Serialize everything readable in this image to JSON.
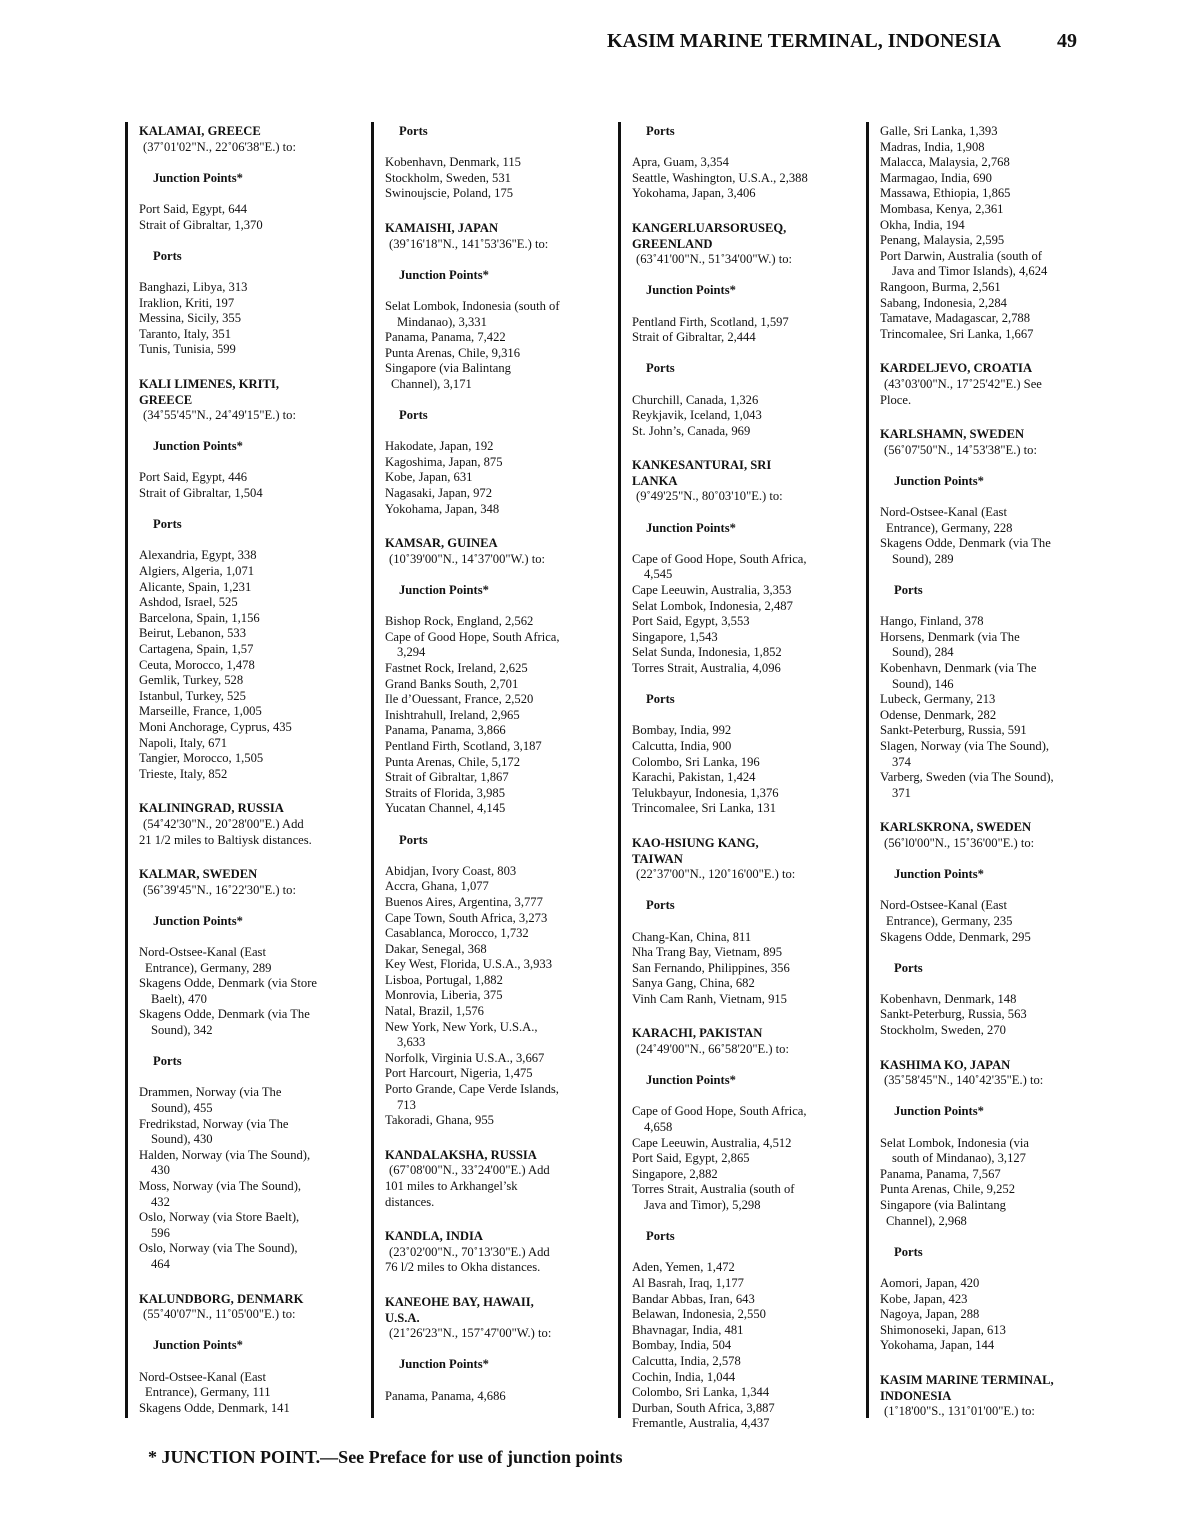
{
  "header": {
    "title": "KASIM MARINE TERMINAL, INDONESIA",
    "page_number": "49"
  },
  "footer": {
    "note": "* JUNCTION POINT.—See Preface for use of junction points"
  },
  "columns": [
    [
      [
        "H",
        "KALAMAI,  GREECE"
      ],
      [
        "C",
        "(37˚01'02\"N., 22˚06'38\"E.) to:"
      ],
      [
        "S",
        "Junction Points*"
      ],
      [
        "E",
        "Port Said, Egypt, 644"
      ],
      [
        "E",
        "Strait of Gibraltar, 1,370"
      ],
      [
        "S",
        "Ports"
      ],
      [
        "E",
        "Banghazi, Libya, 313"
      ],
      [
        "E",
        "Iraklion, Kriti, 197"
      ],
      [
        "E",
        "Messina, Sicily, 355"
      ],
      [
        "E",
        "Taranto, Italy, 351"
      ],
      [
        "E",
        "Tunis, Tunisia, 599"
      ],
      [
        "H",
        "KALI LIMENES,  KRITI,"
      ],
      [
        "H2",
        "GREECE"
      ],
      [
        "C",
        "(34˚55'45\"N., 24˚49'15\"E.) to:"
      ],
      [
        "S",
        "Junction Points*"
      ],
      [
        "E",
        "Port Said, Egypt, 446"
      ],
      [
        "E",
        "Strait of Gibraltar, 1,504"
      ],
      [
        "S",
        "Ports"
      ],
      [
        "E",
        "Alexandria, Egypt, 338"
      ],
      [
        "E",
        "Algiers, Algeria, 1,071"
      ],
      [
        "E",
        "Alicante, Spain, 1,231"
      ],
      [
        "E",
        "Ashdod, Israel, 525"
      ],
      [
        "E",
        "Barcelona, Spain, 1,156"
      ],
      [
        "E",
        "Beirut, Lebanon, 533"
      ],
      [
        "E",
        "Cartagena, Spain, 1,57"
      ],
      [
        "E",
        "Ceuta, Morocco, 1,478"
      ],
      [
        "E",
        "Gemlik, Turkey, 528"
      ],
      [
        "E",
        "Istanbul, Turkey, 525"
      ],
      [
        "E",
        "Marseille, France, 1,005"
      ],
      [
        "E",
        "Moni Anchorage, Cyprus, 435"
      ],
      [
        "E",
        "Napoli, Italy, 671"
      ],
      [
        "E",
        "Tangier, Morocco, 1,505"
      ],
      [
        "E",
        "Trieste, Italy, 852"
      ],
      [
        "H",
        "KALININGRAD,  RUSSIA"
      ],
      [
        "C",
        "(54˚42'30\"N., 20˚28'00\"E.)  Add"
      ],
      [
        "E",
        "21 1/2 miles to Baltiysk distances."
      ],
      [
        "H",
        "KALMAR,  SWEDEN"
      ],
      [
        "C",
        "(56˚39'45\"N., 16˚22'30\"E.) to:"
      ],
      [
        "S",
        "Junction Points*"
      ],
      [
        "E",
        "Nord-Ostsee-Kanal (East"
      ],
      [
        "J",
        "Entrance), Germany, 289"
      ],
      [
        "E",
        "Skagens Odde, Denmark (via Store"
      ],
      [
        "I",
        "Baelt), 470"
      ],
      [
        "E",
        "Skagens Odde, Denmark (via The"
      ],
      [
        "I",
        "Sound), 342"
      ],
      [
        "S",
        "Ports"
      ],
      [
        "E",
        "Drammen, Norway (via The"
      ],
      [
        "I",
        "Sound), 455"
      ],
      [
        "E",
        "Fredrikstad, Norway (via The"
      ],
      [
        "I",
        "Sound), 430"
      ],
      [
        "E",
        "Halden, Norway (via The Sound),"
      ],
      [
        "I",
        "430"
      ],
      [
        "E",
        "Moss, Norway (via The Sound),"
      ],
      [
        "I",
        "432"
      ],
      [
        "E",
        "Oslo, Norway (via Store Baelt),"
      ],
      [
        "I",
        "596"
      ],
      [
        "E",
        "Oslo, Norway (via The Sound),"
      ],
      [
        "I",
        "464"
      ],
      [
        "H",
        "KALUNDBORG,  DENMARK"
      ],
      [
        "C",
        "(55˚40'07\"N., 11˚05'00\"E.) to:"
      ],
      [
        "S",
        "Junction Points*"
      ],
      [
        "E",
        "Nord-Ostsee-Kanal (East"
      ],
      [
        "J",
        "Entrance), Germany, 111"
      ],
      [
        "E",
        "Skagens Odde, Denmark, 141"
      ]
    ],
    [
      [
        "S",
        "Ports"
      ],
      [
        "E",
        "Kobenhavn, Denmark, 115"
      ],
      [
        "E",
        "Stockholm, Sweden, 531"
      ],
      [
        "E",
        "Swinoujscie, Poland, 175"
      ],
      [
        "H",
        "KAMAISHI,  JAPAN"
      ],
      [
        "C",
        "(39˚16'18\"N., 141˚53'36\"E.) to:"
      ],
      [
        "S",
        "Junction Points*"
      ],
      [
        "E",
        "Selat Lombok, Indonesia (south of"
      ],
      [
        "I",
        "Mindanao), 3,331"
      ],
      [
        "E",
        "Panama, Panama, 7,422"
      ],
      [
        "E",
        "Punta Arenas, Chile, 9,316"
      ],
      [
        "E",
        "Singapore (via Balintang"
      ],
      [
        "J",
        "Channel), 3,171"
      ],
      [
        "S",
        "Ports"
      ],
      [
        "E",
        "Hakodate, Japan, 192"
      ],
      [
        "E",
        "Kagoshima, Japan, 875"
      ],
      [
        "E",
        "Kobe, Japan, 631"
      ],
      [
        "E",
        "Nagasaki, Japan, 972"
      ],
      [
        "E",
        "Yokohama, Japan, 348"
      ],
      [
        "H",
        "KAMSAR, GUINEA"
      ],
      [
        "C",
        "(10˚39'00\"N., 14˚37'00\"W.) to:"
      ],
      [
        "S",
        "Junction Points*"
      ],
      [
        "E",
        "Bishop Rock, England, 2,562"
      ],
      [
        "E",
        "Cape of Good Hope, South Africa,"
      ],
      [
        "I",
        "3,294"
      ],
      [
        "E",
        "Fastnet Rock, Ireland, 2,625"
      ],
      [
        "E",
        "Grand Banks South, 2,701"
      ],
      [
        "E",
        "Ile d’Ouessant, France, 2,520"
      ],
      [
        "E",
        "Inishtrahull, Ireland, 2,965"
      ],
      [
        "E",
        "Panama, Panama, 3,866"
      ],
      [
        "E",
        "Pentland Firth, Scotland, 3,187"
      ],
      [
        "E",
        "Punta Arenas, Chile, 5,172"
      ],
      [
        "E",
        "Strait of Gibraltar, 1,867"
      ],
      [
        "E",
        "Straits of Florida, 3,985"
      ],
      [
        "E",
        "Yucatan Channel, 4,145"
      ],
      [
        "S",
        "Ports"
      ],
      [
        "E",
        "Abidjan, Ivory Coast, 803"
      ],
      [
        "E",
        "Accra, Ghana, 1,077"
      ],
      [
        "E",
        "Buenos Aires, Argentina, 3,777"
      ],
      [
        "E",
        "Cape Town, South Africa, 3,273"
      ],
      [
        "E",
        "Casablanca, Morocco, 1,732"
      ],
      [
        "E",
        "Dakar, Senegal, 368"
      ],
      [
        "E",
        "Key West, Florida, U.S.A., 3,933"
      ],
      [
        "E",
        "Lisboa, Portugal, 1,882"
      ],
      [
        "E",
        "Monrovia, Liberia, 375"
      ],
      [
        "E",
        "Natal, Brazil, 1,576"
      ],
      [
        "E",
        "New York, New York, U.S.A.,"
      ],
      [
        "I",
        "3,633"
      ],
      [
        "E",
        "Norfolk, Virginia U.S.A., 3,667"
      ],
      [
        "E",
        "Port Harcourt, Nigeria, 1,475"
      ],
      [
        "E",
        "Porto Grande, Cape Verde Islands,"
      ],
      [
        "I",
        "713"
      ],
      [
        "E",
        "Takoradi, Ghana, 955"
      ],
      [
        "H",
        "KANDALAKSHA,  RUSSIA"
      ],
      [
        "C",
        "(67˚08'00\"N., 33˚24'00\"E.)  Add"
      ],
      [
        "E",
        "101 miles to Arkhangel’sk"
      ],
      [
        "E",
        "distances."
      ],
      [
        "H",
        "KANDLA,  INDIA"
      ],
      [
        "C",
        "(23˚02'00\"N., 70˚13'30\"E.)  Add"
      ],
      [
        "E",
        "76 l/2 miles to Okha distances."
      ],
      [
        "H",
        "KANEOHE BAY,  HAWAII,"
      ],
      [
        "H2",
        "U.S.A."
      ],
      [
        "C",
        "(21˚26'23\"N., 157˚47'00\"W.) to:"
      ],
      [
        "S",
        "Junction Points*"
      ],
      [
        "E",
        "Panama, Panama, 4,686"
      ]
    ],
    [
      [
        "S",
        "Ports"
      ],
      [
        "E",
        "Apra, Guam, 3,354"
      ],
      [
        "E",
        "Seattle, Washington, U.S.A., 2,388"
      ],
      [
        "E",
        "Yokohama, Japan, 3,406"
      ],
      [
        "H",
        "KANGERLUARSORUSEQ,"
      ],
      [
        "H2",
        "GREENLAND"
      ],
      [
        "C",
        "(63˚41'00\"N., 51˚34'00\"W.) to:"
      ],
      [
        "S",
        "Junction Points*"
      ],
      [
        "E",
        "Pentland Firth, Scotland, 1,597"
      ],
      [
        "E",
        "Strait of Gibraltar, 2,444"
      ],
      [
        "S",
        "Ports"
      ],
      [
        "E",
        "Churchill, Canada, 1,326"
      ],
      [
        "E",
        "Reykjavik, Iceland, 1,043"
      ],
      [
        "E",
        "St. John’s, Canada, 969"
      ],
      [
        "H",
        "KANKESANTURAI,  SRI"
      ],
      [
        "H2",
        "LANKA"
      ],
      [
        "C",
        "(9˚49'25\"N., 80˚03'10\"E.) to:"
      ],
      [
        "S",
        "Junction Points*"
      ],
      [
        "E",
        "Cape of Good Hope, South Africa,"
      ],
      [
        "I",
        "4,545"
      ],
      [
        "E",
        "Cape Leeuwin, Australia, 3,353"
      ],
      [
        "E",
        "Selat Lombok, Indonesia, 2,487"
      ],
      [
        "E",
        "Port Said, Egypt, 3,553"
      ],
      [
        "E",
        "Singapore, 1,543"
      ],
      [
        "E",
        "Selat Sunda, Indonesia, 1,852"
      ],
      [
        "E",
        "Torres Strait, Australia, 4,096"
      ],
      [
        "S",
        "Ports"
      ],
      [
        "E",
        "Bombay, India, 992"
      ],
      [
        "E",
        "Calcutta, India, 900"
      ],
      [
        "E",
        "Colombo, Sri Lanka, 196"
      ],
      [
        "E",
        "Karachi, Pakistan, 1,424"
      ],
      [
        "E",
        "Telukbayur, Indonesia, 1,376"
      ],
      [
        "E",
        "Trincomalee, Sri Lanka, 131"
      ],
      [
        "H",
        "KAO-HSIUNG KANG,"
      ],
      [
        "H2",
        "TAIWAN"
      ],
      [
        "C",
        "(22˚37'00\"N., 120˚16'00\"E.) to:"
      ],
      [
        "S",
        "Ports"
      ],
      [
        "E",
        "Chang-Kan, China, 811"
      ],
      [
        "E",
        "Nha Trang Bay, Vietnam, 895"
      ],
      [
        "E",
        "San Fernando, Philippines, 356"
      ],
      [
        "E",
        "Sanya Gang, China, 682"
      ],
      [
        "E",
        "Vinh Cam Ranh, Vietnam, 915"
      ],
      [
        "H",
        "KARACHI,  PAKISTAN"
      ],
      [
        "C",
        "(24˚49'00\"N., 66˚58'20\"E.) to:"
      ],
      [
        "S",
        "Junction Points*"
      ],
      [
        "E",
        "Cape of Good Hope, South Africa,"
      ],
      [
        "I",
        "4,658"
      ],
      [
        "E",
        "Cape Leeuwin, Australia, 4,512"
      ],
      [
        "E",
        "Port Said, Egypt, 2,865"
      ],
      [
        "E",
        "Singapore, 2,882"
      ],
      [
        "E",
        "Torres Strait, Australia (south of"
      ],
      [
        "I",
        "Java and Timor), 5,298"
      ],
      [
        "S",
        "Ports"
      ],
      [
        "E",
        "Aden, Yemen, 1,472"
      ],
      [
        "E",
        "Al Basrah, Iraq, 1,177"
      ],
      [
        "E",
        "Bandar Abbas, Iran, 643"
      ],
      [
        "E",
        "Belawan, Indonesia, 2,550"
      ],
      [
        "E",
        "Bhavnagar, India, 481"
      ],
      [
        "E",
        "Bombay, India, 504"
      ],
      [
        "E",
        "Calcutta, India, 2,578"
      ],
      [
        "E",
        "Cochin, India, 1,044"
      ],
      [
        "E",
        "Colombo, Sri Lanka, 1,344"
      ],
      [
        "E",
        "Durban, South Africa, 3,887"
      ],
      [
        "E",
        "Fremantle, Australia, 4,437"
      ]
    ],
    [
      [
        "E",
        "Galle, Sri Lanka, 1,393"
      ],
      [
        "E",
        "Madras, India, 1,908"
      ],
      [
        "E",
        "Malacca, Malaysia, 2,768"
      ],
      [
        "E",
        "Marmagao, India, 690"
      ],
      [
        "E",
        "Massawa, Ethiopia, 1,865"
      ],
      [
        "E",
        "Mombasa, Kenya, 2,361"
      ],
      [
        "E",
        "Okha, India, 194"
      ],
      [
        "E",
        "Penang, Malaysia, 2,595"
      ],
      [
        "E",
        "Port Darwin, Australia (south of"
      ],
      [
        "I",
        "Java and Timor Islands), 4,624"
      ],
      [
        "E",
        "Rangoon, Burma, 2,561"
      ],
      [
        "E",
        "Sabang, Indonesia, 2,284"
      ],
      [
        "E",
        "Tamatave, Madagascar, 2,788"
      ],
      [
        "E",
        "Trincomalee, Sri Lanka, 1,667"
      ],
      [
        "H",
        "KARDELJEVO,  CROATIA"
      ],
      [
        "C",
        "(43˚03'00\"N., 17˚25'42\"E.)  See"
      ],
      [
        "E",
        "Ploce."
      ],
      [
        "H",
        "KARLSHAMN,  SWEDEN"
      ],
      [
        "C",
        "(56˚07'50\"N., 14˚53'38\"E.) to:"
      ],
      [
        "S",
        "Junction Points*"
      ],
      [
        "E",
        "Nord-Ostsee-Kanal (East"
      ],
      [
        "J",
        "Entrance), Germany, 228"
      ],
      [
        "E",
        "Skagens Odde, Denmark (via The"
      ],
      [
        "I",
        "Sound), 289"
      ],
      [
        "S",
        "Ports"
      ],
      [
        "E",
        "Hango, Finland, 378"
      ],
      [
        "E",
        "Horsens, Denmark (via The"
      ],
      [
        "I",
        "Sound), 284"
      ],
      [
        "E",
        "Kobenhavn, Denmark (via The"
      ],
      [
        "I",
        "Sound), 146"
      ],
      [
        "E",
        "Lubeck, Germany, 213"
      ],
      [
        "E",
        "Odense, Denmark, 282"
      ],
      [
        "E",
        "Sankt-Peterburg, Russia, 591"
      ],
      [
        "E",
        "Slagen, Norway (via The Sound),"
      ],
      [
        "I",
        "374"
      ],
      [
        "E",
        "Varberg, Sweden (via The Sound),"
      ],
      [
        "I",
        "371"
      ],
      [
        "H",
        "KARLSKRONA,  SWEDEN"
      ],
      [
        "C",
        "(56˚l0'00\"N., 15˚36'00\"E.) to:"
      ],
      [
        "S",
        "Junction Points*"
      ],
      [
        "E",
        "Nord-Ostsee-Kanal (East"
      ],
      [
        "J",
        "Entrance), Germany, 235"
      ],
      [
        "E",
        "Skagens Odde, Denmark, 295"
      ],
      [
        "S",
        "Ports"
      ],
      [
        "E",
        "Kobenhavn, Denmark, 148"
      ],
      [
        "E",
        "Sankt-Peterburg, Russia, 563"
      ],
      [
        "E",
        "Stockholm, Sweden, 270"
      ],
      [
        "H",
        "KASHIMA KO,  JAPAN"
      ],
      [
        "C",
        "(35˚58'45\"N., 140˚42'35\"E.) to:"
      ],
      [
        "S",
        "Junction Points*"
      ],
      [
        "E",
        "Selat Lombok, Indonesia (via"
      ],
      [
        "I",
        "south of Mindanao), 3,127"
      ],
      [
        "E",
        "Panama, Panama, 7,567"
      ],
      [
        "E",
        "Punta Arenas, Chile, 9,252"
      ],
      [
        "E",
        "Singapore (via Balintang"
      ],
      [
        "J",
        "Channel), 2,968"
      ],
      [
        "S",
        "Ports"
      ],
      [
        "E",
        "Aomori, Japan, 420"
      ],
      [
        "E",
        "Kobe, Japan, 423"
      ],
      [
        "E",
        "Nagoya, Japan, 288"
      ],
      [
        "E",
        "Shimonoseki, Japan, 613"
      ],
      [
        "E",
        "Yokohama, Japan, 144"
      ],
      [
        "H",
        "KASIM MARINE TERMINAL,"
      ],
      [
        "H2",
        "INDONESIA"
      ],
      [
        "C",
        "(1˚18'00\"S., 131˚01'00\"E.) to:"
      ]
    ]
  ]
}
